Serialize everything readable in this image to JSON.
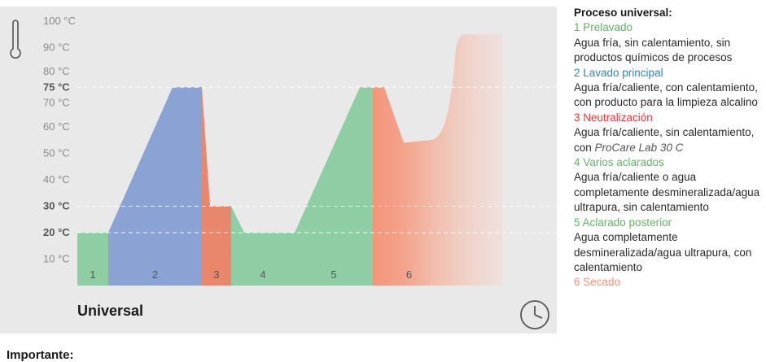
{
  "chart": {
    "title": "Universal",
    "y_unit": "°C",
    "y_ticks": [
      {
        "value": 10,
        "label": "10 °C",
        "bold": false
      },
      {
        "value": 20,
        "label": "20 °C",
        "bold": true
      },
      {
        "value": 30,
        "label": "30 °C",
        "bold": true
      },
      {
        "value": 40,
        "label": "40 °C",
        "bold": false
      },
      {
        "value": 50,
        "label": "50 °C",
        "bold": false
      },
      {
        "value": 60,
        "label": "60 °C",
        "bold": false
      },
      {
        "value": 70,
        "label": "70 °C",
        "bold": false
      },
      {
        "value": 75,
        "label": "75 °C",
        "bold": true
      },
      {
        "value": 80,
        "label": "80 °C",
        "bold": false
      },
      {
        "value": 90,
        "label": "90 °C",
        "bold": false
      },
      {
        "value": 100,
        "label": "100 °C",
        "bold": false
      }
    ],
    "reference_lines": [
      20,
      30,
      75
    ],
    "phases": [
      {
        "number": "1",
        "color": "#8fcea5",
        "temperature_profile": [
          20,
          20
        ]
      },
      {
        "number": "2",
        "color": "#8aa3d4",
        "temperature_profile": [
          20,
          75,
          75
        ]
      },
      {
        "number": "3",
        "color": "#e8876c",
        "temperature_profile": [
          75,
          30,
          30
        ]
      },
      {
        "number": "4",
        "color": "#8fcea5",
        "temperature_profile": [
          30,
          20,
          20
        ]
      },
      {
        "number": "5",
        "color": "#8fcea5",
        "temperature_profile": [
          20,
          75,
          75
        ]
      },
      {
        "number": "6",
        "color": "#f4957a",
        "temperature_profile": [
          75,
          54,
          55,
          95,
          95
        ]
      }
    ]
  },
  "icons": {
    "thermometer": "thermometer-icon",
    "clock": "clock-icon"
  },
  "legend": {
    "title": "Proceso universal:",
    "items": [
      {
        "phase": "1 Prelavado",
        "color": "#5cb85c",
        "desc": "Agua fría, sin calentamiento, sin productos químicos de procesos"
      },
      {
        "phase": "2 Lavado principal",
        "color": "#2a86c2",
        "desc": "Agua fría/caliente, con calentamiento, con producto para la limpieza alcalino"
      },
      {
        "phase": "3 Neutralización",
        "color": "#e2393b",
        "desc": "Agua fría/caliente, sin calentamiento, con ",
        "desc_italic": "ProCare Lab 30 C"
      },
      {
        "phase": "4 Varios aclarados",
        "color": "#5cb85c",
        "desc": "Agua fría/caliente o agua completamente desmineralizada/agua ultrapura, sin calentamiento"
      },
      {
        "phase": "5 Aclarado posterior",
        "color": "#5cb85c",
        "desc": "Agua completamente desmineralizada/agua ultrapura, con calentamiento"
      },
      {
        "phase": "6 Secado",
        "color": "#f2957c",
        "desc": ""
      }
    ]
  },
  "note": {
    "title": "Importante:"
  }
}
